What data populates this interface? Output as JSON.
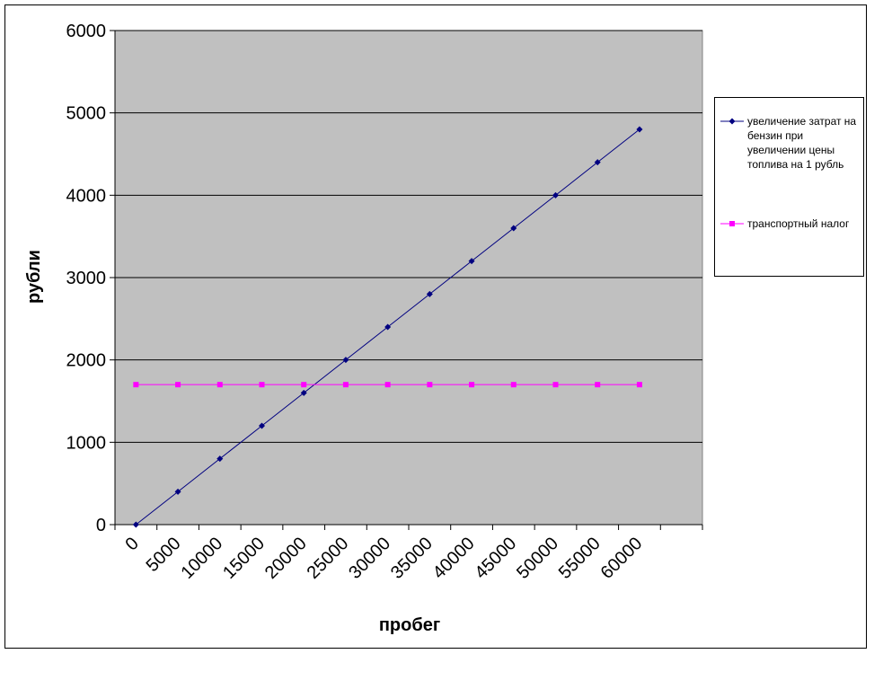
{
  "chart_data": {
    "type": "line",
    "x_label": "пробег",
    "y_label": "рубли",
    "categories": [
      "0",
      "5000",
      "10000",
      "15000",
      "20000",
      "25000",
      "30000",
      "35000",
      "40000",
      "45000",
      "50000",
      "55000",
      "60000",
      null
    ],
    "series": [
      {
        "name": "увеличение затрат на бензин при увеличении цены топлива на 1 рубль",
        "color": "#000080",
        "marker": "diamond",
        "values": [
          0,
          400,
          800,
          1200,
          1600,
          2000,
          2400,
          2800,
          3200,
          3600,
          4000,
          4400,
          4800,
          null
        ]
      },
      {
        "name": "транспортный налог",
        "color": "#ff00ff",
        "marker": "square",
        "values": [
          1700,
          1700,
          1700,
          1700,
          1700,
          1700,
          1700,
          1700,
          1700,
          1700,
          1700,
          1700,
          1700,
          null
        ]
      }
    ],
    "ylim": [
      0,
      6000
    ],
    "yticks": [
      0,
      1000,
      2000,
      3000,
      4000,
      5000,
      6000
    ],
    "grid": true,
    "legend": "right",
    "plot_background": "#c0c0c0"
  }
}
